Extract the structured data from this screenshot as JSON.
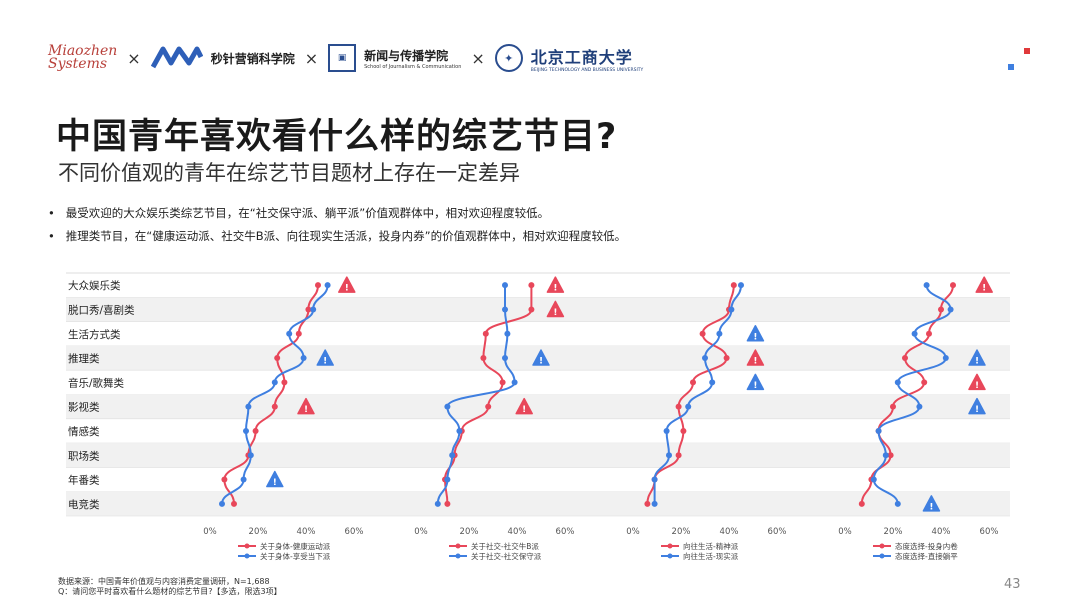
{
  "header": {
    "logo_miaozhen_line1": "Miaozhen",
    "logo_miaozhen_line2": "Systems",
    "times_symbol": "×",
    "logo_school_name": "秒针营销科学院",
    "logo_journalism_cn": "新闻与传播学院",
    "logo_journalism_en": "School of Journalism & Communication",
    "logo_university_cn": "北京工商大学",
    "logo_university_en": "BEIJING TECHNOLOGY AND BUSINESS UNIVERSITY"
  },
  "title": "中国青年喜欢看什么样的综艺节目?",
  "subtitle": "不同价值观的青年在综艺节目题材上存在一定差异",
  "bullets": [
    "最受欢迎的大众娱乐类综艺节目，在“社交保守派、躺平派”价值观群体中，相对欢迎程度较低。",
    "推理类节目，在“健康运动派、社交牛B派、向往现实生活派，投身内券”的价值观群体中，相对欢迎程度较低。"
  ],
  "bullet_marker": "•",
  "footnote": {
    "line1": "数据来源：中国青年价值观与内容消费定量调研，N=1,688",
    "line2": "Q：请问您平时喜欢看什么题材的综艺节目?【多选，限选3项】"
  },
  "page_number": "43",
  "colors": {
    "red": "#e8475a",
    "blue": "#3f7fe0",
    "stripe": "#f1f1f1",
    "grid": "#dddddd",
    "warn_red": "#e8475a",
    "warn_blue": "#3f7fe0",
    "accent_sq_red": "#e0393b",
    "accent_sq_blue": "#3f7fe0"
  },
  "chart_data": [
    {
      "type": "line",
      "orientation": "vertical",
      "categories": [
        "大众娱乐类",
        "脱口秀/喜剧类",
        "生活方式类",
        "推理类",
        "音乐/歌舞类",
        "影视类",
        "情感类",
        "职场类",
        "年番类",
        "电竞类"
      ],
      "x_ticks": [
        "0%",
        "20%",
        "40%",
        "60%"
      ],
      "xlim": [
        0,
        60
      ],
      "series": [
        {
          "name": "关于身体-健康运动派",
          "color": "red",
          "values": [
            45,
            41,
            37,
            28,
            31,
            27,
            19,
            16,
            6,
            10
          ]
        },
        {
          "name": "关于身体-享受当下派",
          "color": "blue",
          "values": [
            49,
            43,
            33,
            39,
            27,
            16,
            15,
            17,
            14,
            5
          ]
        }
      ],
      "alerts": [
        {
          "category": "大众娱乐类",
          "type": "red-warning"
        },
        {
          "category": "脱口秀/喜剧类",
          "type": "none"
        },
        {
          "category": "推理类",
          "type": "blue-warning",
          "x": 48
        },
        {
          "category": "影视类",
          "type": "red-warning",
          "x": 40
        },
        {
          "category": "年番类",
          "type": "blue-warning",
          "x": 27
        }
      ]
    },
    {
      "type": "line",
      "orientation": "vertical",
      "categories": [
        "大众娱乐类",
        "脱口秀/喜剧类",
        "生活方式类",
        "推理类",
        "音乐/歌舞类",
        "影视类",
        "情感类",
        "职场类",
        "年番类",
        "电竞类"
      ],
      "x_ticks": [
        "0%",
        "20%",
        "40%",
        "60%"
      ],
      "xlim": [
        0,
        60
      ],
      "series": [
        {
          "name": "关于社交-社交牛B派",
          "color": "red",
          "values": [
            46,
            46,
            27,
            26,
            34,
            28,
            17,
            14,
            10,
            11
          ]
        },
        {
          "name": "关于社交-社交保守派",
          "color": "blue",
          "values": [
            35,
            35,
            36,
            35,
            39,
            11,
            16,
            13,
            11,
            7
          ]
        }
      ],
      "alerts": [
        {
          "category": "大众娱乐类",
          "type": "red-warning",
          "x": 56
        },
        {
          "category": "脱口秀/喜剧类",
          "type": "red-warning",
          "x": 56
        },
        {
          "category": "推理类",
          "type": "blue-warning",
          "x": 50
        },
        {
          "category": "影视类",
          "type": "red-warning",
          "x": 43
        }
      ]
    },
    {
      "type": "line",
      "orientation": "vertical",
      "categories": [
        "大众娱乐类",
        "脱口秀/喜剧类",
        "生活方式类",
        "推理类",
        "音乐/歌舞类",
        "影视类",
        "情感类",
        "职场类",
        "年番类",
        "电竞类"
      ],
      "x_ticks": [
        "0%",
        "20%",
        "40%",
        "60%"
      ],
      "xlim": [
        0,
        60
      ],
      "series": [
        {
          "name": "向往生活-精神派",
          "color": "red",
          "values": [
            42,
            40,
            29,
            39,
            25,
            19,
            21,
            19,
            9,
            6
          ]
        },
        {
          "name": "向往生活-现实派",
          "color": "blue",
          "values": [
            45,
            41,
            36,
            30,
            33,
            23,
            14,
            15,
            9,
            9
          ]
        }
      ],
      "alerts": [
        {
          "category": "生活方式类",
          "type": "blue-warning",
          "x": 51
        },
        {
          "category": "推理类",
          "type": "red-warning",
          "x": 51
        },
        {
          "category": "音乐/歌舞类",
          "type": "blue-warning",
          "x": 51
        }
      ]
    },
    {
      "type": "line",
      "orientation": "vertical",
      "categories": [
        "大众娱乐类",
        "脱口秀/喜剧类",
        "生活方式类",
        "推理类",
        "音乐/歌舞类",
        "影视类",
        "情感类",
        "职场类",
        "年番类",
        "电竞类"
      ],
      "x_ticks": [
        "0%",
        "20%",
        "40%",
        "60%"
      ],
      "xlim": [
        0,
        60
      ],
      "series": [
        {
          "name": "态度选择-投身内卷",
          "color": "red",
          "values": [
            45,
            40,
            35,
            25,
            33,
            20,
            14,
            19,
            11,
            7
          ]
        },
        {
          "name": "态度选择-直接躺平",
          "color": "blue",
          "values": [
            34,
            44,
            29,
            42,
            22,
            31,
            14,
            17,
            12,
            22
          ]
        }
      ],
      "alerts": [
        {
          "category": "大众娱乐类",
          "type": "red-warning",
          "x": 58
        },
        {
          "category": "推理类",
          "type": "blue-warning",
          "x": 55
        },
        {
          "category": "音乐/歌舞类",
          "type": "red-warning",
          "x": 55
        },
        {
          "category": "影视类",
          "type": "blue-warning",
          "x": 55
        },
        {
          "category": "电竞类",
          "type": "blue-warning",
          "x": 36
        }
      ]
    }
  ]
}
